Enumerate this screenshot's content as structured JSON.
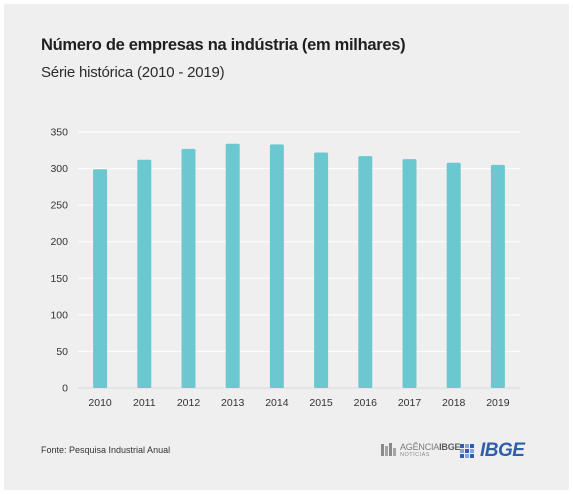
{
  "header": {
    "title": "Número de empresas na indústria (em milhares)",
    "subtitle": "Série histórica (2010 - 2019)"
  },
  "footer": {
    "source": "Fonte: Pesquisa Industrial Anual"
  },
  "logos": {
    "agencia_prefix": "AGÊNCIA",
    "agencia_brand": "IBGE",
    "agencia_sub": "NOTÍCIAS",
    "ibge": "IBGE"
  },
  "colors": {
    "bar": "#6cc8d0",
    "grid": "#ffffff",
    "background": "#efefef",
    "ibge_blue": "#2e5fa8"
  },
  "chart_data": {
    "type": "bar",
    "title": "Número de empresas na indústria (em milhares)",
    "subtitle": "Série histórica (2010 - 2019)",
    "categories": [
      "2010",
      "2011",
      "2012",
      "2013",
      "2014",
      "2015",
      "2016",
      "2017",
      "2018",
      "2019"
    ],
    "values": [
      299,
      312,
      327,
      334,
      333,
      322,
      317,
      313,
      308,
      305
    ],
    "ylim": [
      0,
      350
    ],
    "yticks": [
      0,
      50,
      100,
      150,
      200,
      250,
      300,
      350
    ],
    "grid": true,
    "legend": "none"
  }
}
